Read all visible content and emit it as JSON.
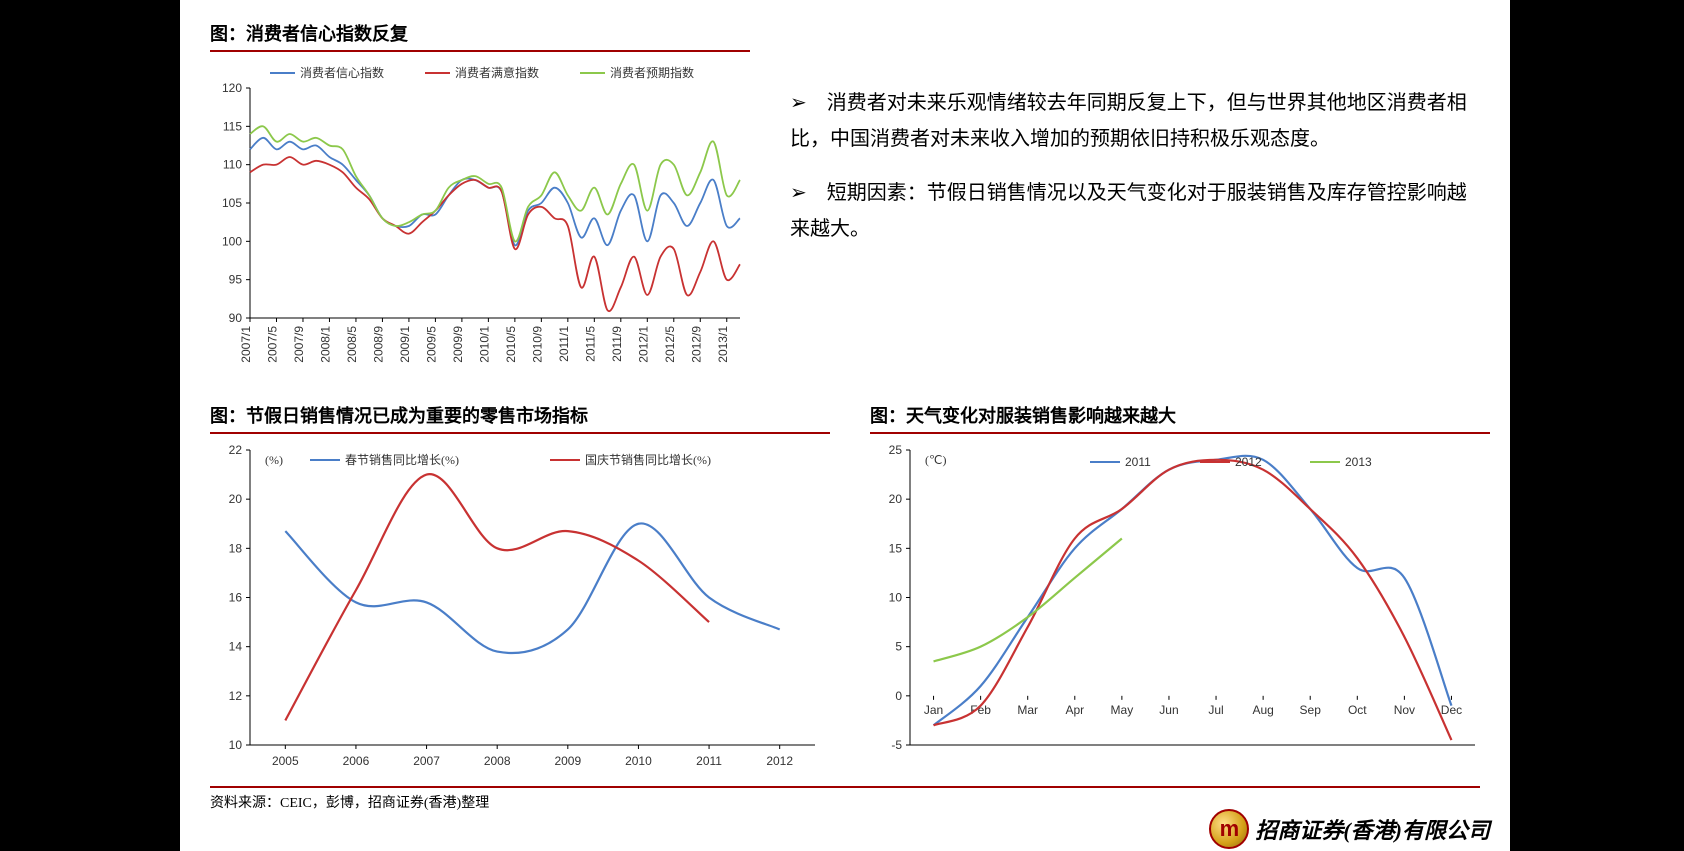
{
  "chart1": {
    "title": "图：消费者信心指数反复",
    "type": "line",
    "legend": [
      "消费者信心指数",
      "消费者满意指数",
      "消费者预期指数"
    ],
    "series_colors": [
      "#4a7ec8",
      "#c83232",
      "#8cc84b"
    ],
    "yaxis": {
      "min": 90,
      "max": 120,
      "step": 5
    },
    "xlabels": [
      "2007/1",
      "2007/5",
      "2007/9",
      "2008/1",
      "2008/5",
      "2008/9",
      "2009/1",
      "2009/5",
      "2009/9",
      "2010/1",
      "2010/5",
      "2010/9",
      "2011/1",
      "2011/5",
      "2011/9",
      "2012/1",
      "2012/5",
      "2012/9",
      "2013/1"
    ],
    "series": [
      [
        112,
        113.5,
        112,
        113,
        112,
        112.5,
        111,
        110,
        108,
        106,
        103,
        102,
        102,
        103.5,
        103.5,
        106,
        108,
        108,
        107,
        106.5,
        99.5,
        104,
        105,
        107,
        105,
        100.5,
        103,
        99.5,
        104,
        106,
        100,
        106,
        105,
        102,
        105,
        108,
        102,
        103
      ],
      [
        109,
        110,
        110,
        111,
        110,
        110.5,
        110,
        109,
        107,
        105.5,
        103,
        102,
        101,
        102.5,
        104,
        106,
        107.5,
        108,
        107,
        106.5,
        99,
        103.5,
        104.5,
        103,
        102,
        94,
        98,
        91,
        94,
        98,
        93,
        98,
        99,
        93,
        96,
        100,
        95,
        97
      ],
      [
        114,
        115,
        113,
        114,
        113,
        113.5,
        112.5,
        112,
        108.5,
        106,
        103,
        102,
        102.5,
        103.5,
        104,
        107,
        108,
        108.5,
        107.5,
        107,
        100,
        104.5,
        106,
        109,
        106,
        104,
        107,
        103.5,
        107.5,
        110,
        104,
        110,
        110,
        106,
        109,
        113,
        106,
        108
      ]
    ]
  },
  "bullets": [
    "消费者对未来乐观情绪较去年同期反复上下，但与世界其他地区消费者相比，中国消费者对未来收入增加的预期依旧持积极乐观态度。",
    "短期因素：节假日销售情况以及天气变化对于服装销售及库存管控影响越来越大。"
  ],
  "chart2": {
    "title": "图：节假日销售情况已成为重要的零售市场指标",
    "type": "line",
    "ylabel": "(%)",
    "legend": [
      "春节销售同比增长(%)",
      "国庆节销售同比增长(%)"
    ],
    "series_colors": [
      "#4a7ec8",
      "#c83232"
    ],
    "yaxis": {
      "min": 10,
      "max": 22,
      "step": 2
    },
    "xlabels": [
      "2005",
      "2006",
      "2007",
      "2008",
      "2009",
      "2010",
      "2011",
      "2012"
    ],
    "series": [
      [
        18.7,
        15.8,
        15.8,
        13.8,
        14.7,
        19.0,
        16.0,
        14.7
      ],
      [
        11.0,
        16.3,
        21.0,
        18.0,
        18.7,
        17.5,
        15.0,
        null
      ]
    ]
  },
  "chart3": {
    "title": "图：天气变化对服装销售影响越来越大",
    "type": "line",
    "ylabel": "(℃)",
    "legend": [
      "2011",
      "2012",
      "2013"
    ],
    "series_colors": [
      "#4a7ec8",
      "#c83232",
      "#8cc84b"
    ],
    "yaxis": {
      "min": -5,
      "max": 25,
      "step": 5
    },
    "xlabels": [
      "Jan",
      "Feb",
      "Mar",
      "Apr",
      "May",
      "Jun",
      "Jul",
      "Aug",
      "Sep",
      "Oct",
      "Nov",
      "Dec"
    ],
    "series": [
      [
        -3,
        1,
        8,
        15,
        19,
        23,
        24,
        24,
        19,
        13,
        12,
        -1
      ],
      [
        -3,
        -1,
        7,
        16,
        19,
        23,
        24,
        23,
        19,
        14,
        6,
        -4.5
      ],
      [
        3.5,
        5,
        8,
        12,
        16,
        null,
        null,
        null,
        null,
        null,
        null,
        null
      ]
    ]
  },
  "source": "资料来源：CEIC，彭博，招商证券(香港)整理",
  "company": "招商证券(香港)有限公司",
  "logo_glyph": "m"
}
